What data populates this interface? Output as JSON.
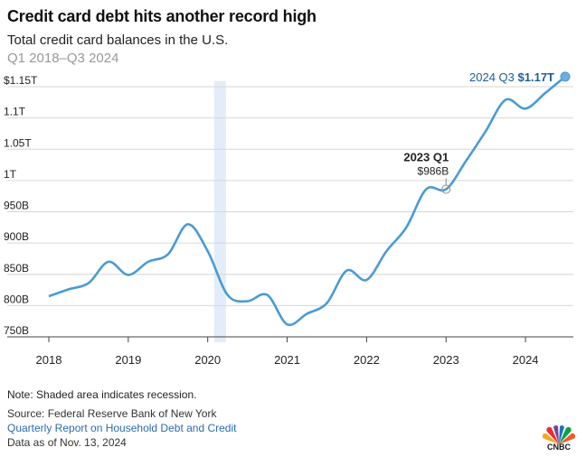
{
  "header": {
    "title": "Credit card debt hits another record high",
    "subtitle": "Total credit card balances in the U.S.",
    "range": "Q1 2018–Q3 2024"
  },
  "chart_data": {
    "type": "line",
    "title": "Credit card debt hits another record high",
    "subtitle": "Total credit card balances in the U.S.",
    "xlabel": "",
    "ylabel": "",
    "xlim": [
      2018,
      2024.5
    ],
    "ylim": [
      750,
      1150
    ],
    "x_ticks": [
      2018,
      2019,
      2020,
      2021,
      2022,
      2023,
      2024
    ],
    "x_tick_labels": [
      "2018",
      "2019",
      "2020",
      "2021",
      "2022",
      "2023",
      "2024"
    ],
    "y_ticks": [
      750,
      800,
      850,
      900,
      950,
      1000,
      1050,
      1100,
      1150
    ],
    "y_tick_labels": [
      "750B",
      "800B",
      "850B",
      "900B",
      "950B",
      "1T",
      "1.05T",
      "1.1T",
      "$1.15T"
    ],
    "grid": "horizontal",
    "color": "#4a9bd3",
    "recession": {
      "start": 2020.08,
      "end": 2020.23,
      "color": "#e3edf9"
    },
    "points": [
      {
        "x": 2018.0,
        "y": 815
      },
      {
        "x": 2018.25,
        "y": 826
      },
      {
        "x": 2018.5,
        "y": 836
      },
      {
        "x": 2018.75,
        "y": 870
      },
      {
        "x": 2019.0,
        "y": 849
      },
      {
        "x": 2019.25,
        "y": 870
      },
      {
        "x": 2019.5,
        "y": 882
      },
      {
        "x": 2019.75,
        "y": 930
      },
      {
        "x": 2020.0,
        "y": 887
      },
      {
        "x": 2020.25,
        "y": 817
      },
      {
        "x": 2020.5,
        "y": 807
      },
      {
        "x": 2020.75,
        "y": 817
      },
      {
        "x": 2021.0,
        "y": 770
      },
      {
        "x": 2021.25,
        "y": 787
      },
      {
        "x": 2021.5,
        "y": 804
      },
      {
        "x": 2021.75,
        "y": 856
      },
      {
        "x": 2022.0,
        "y": 841
      },
      {
        "x": 2022.25,
        "y": 887
      },
      {
        "x": 2022.5,
        "y": 925
      },
      {
        "x": 2022.75,
        "y": 986
      },
      {
        "x": 2023.0,
        "y": 986
      },
      {
        "x": 2023.25,
        "y": 1031
      },
      {
        "x": 2023.5,
        "y": 1079
      },
      {
        "x": 2023.75,
        "y": 1129
      },
      {
        "x": 2024.0,
        "y": 1115
      },
      {
        "x": 2024.25,
        "y": 1140
      },
      {
        "x": 2024.5,
        "y": 1166
      }
    ],
    "annotations": {
      "mid": {
        "x": 2023.0,
        "y": 986,
        "label": "2023 Q1",
        "value": "$986B"
      },
      "end": {
        "x": 2024.5,
        "y": 1166,
        "label": "2024 Q3",
        "value": "$1.17T"
      }
    }
  },
  "footer": {
    "note": "Note: Shaded area indicates recession.",
    "source": "Source: Federal Reserve Bank of New York",
    "report_link": "Quarterly Report on Household Debt and Credit",
    "asof": "Data as of Nov. 13, 2024",
    "logo_text": "CNBC",
    "logo_icon": "cnbc-peacock-icon"
  }
}
